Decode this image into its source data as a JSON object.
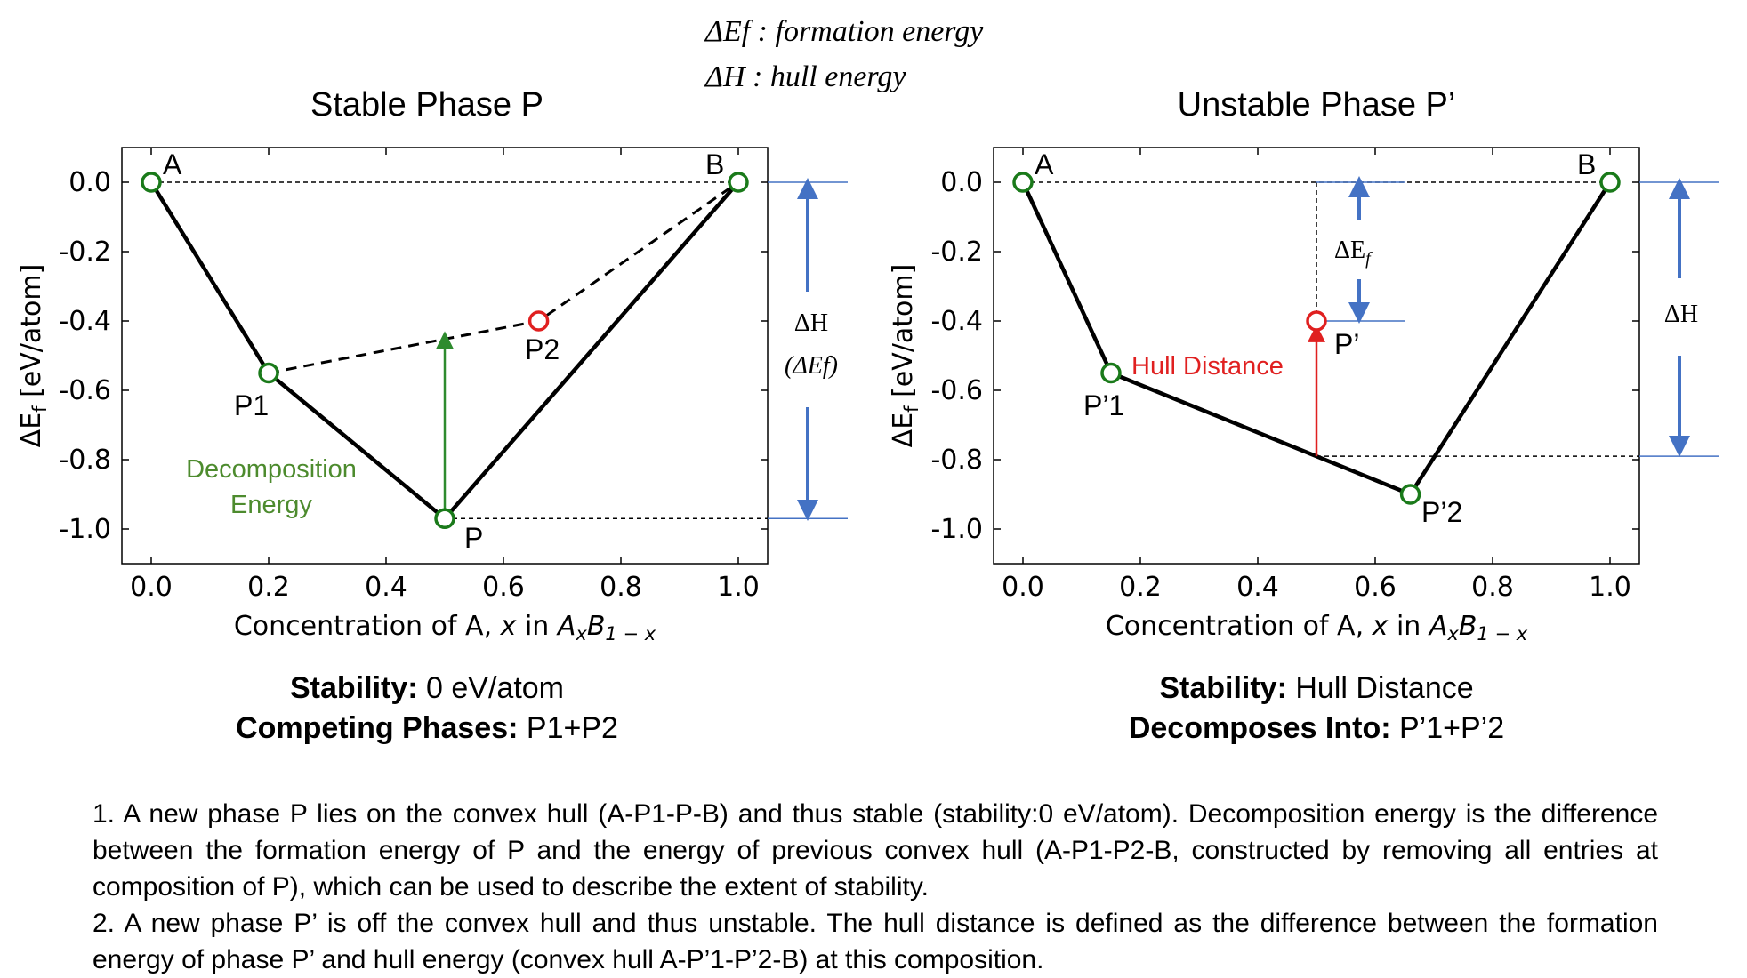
{
  "legend_text": {
    "line1": "ΔEf : formation energy",
    "line2": "ΔH : hull energy"
  },
  "panels": [
    {
      "title": "Stable Phase P",
      "summary_label1": "Stability:",
      "summary_value1": " 0 eV/atom",
      "summary_label2": "Competing Phases:",
      "summary_value2": " P1+P2"
    },
    {
      "title": "Unstable Phase P’",
      "summary_label1": "Stability:",
      "summary_value1": " Hull Distance",
      "summary_label2": "Decomposes Into:",
      "summary_value2": " P’1+P’2"
    }
  ],
  "notes": {
    "n1": "1. A new phase P lies on the convex hull (A-P1-P-B) and thus stable (stability:0 eV/atom). Decomposition energy is the difference between the formation energy of P and the energy of previous convex hull (A-P1-P2-B, constructed by removing all entries at composition of P), which can be used to describe the extent of stability.",
    "n2": "2. A new phase P’ is off the convex hull and thus unstable. The hull distance is defined as the difference between the formation energy of phase P’ and hull energy (convex hull A-P’1-P’2-B) at this composition."
  },
  "chart_data": [
    {
      "type": "line",
      "title": "Stable Phase P",
      "xlabel": "Concentration of A, x in AxB1−x",
      "ylabel": "ΔEf [eV/atom]",
      "xlim": [
        -0.05,
        1.05
      ],
      "ylim": [
        -1.1,
        0.1
      ],
      "xticks": [
        "0.0",
        "0.2",
        "0.4",
        "0.6",
        "0.8",
        "1.0"
      ],
      "yticks": [
        "0.0",
        "-0.2",
        "-0.4",
        "-0.6",
        "-0.8",
        "-1.0"
      ],
      "points": [
        {
          "name": "A",
          "x": 0.0,
          "y": 0.0,
          "color": "#1a7a1a"
        },
        {
          "name": "P1",
          "x": 0.2,
          "y": -0.55,
          "color": "#1a7a1a"
        },
        {
          "name": "P",
          "x": 0.5,
          "y": -0.97,
          "color": "#1a7a1a"
        },
        {
          "name": "P2",
          "x": 0.66,
          "y": -0.4,
          "color": "#e02020"
        },
        {
          "name": "B",
          "x": 1.0,
          "y": 0.0,
          "color": "#1a7a1a"
        }
      ],
      "series": [
        {
          "name": "",
          "style": "solid",
          "x": [
            0.0,
            0.2,
            0.5,
            1.0
          ],
          "y": [
            0.0,
            -0.55,
            -0.97,
            0.0
          ]
        },
        {
          "name": "",
          "style": "dashed",
          "x": [
            0.2,
            0.66,
            1.0
          ],
          "y": [
            -0.55,
            -0.4,
            0.0
          ]
        }
      ],
      "annotations": {
        "arrow_label_line1": "Decomposition",
        "arrow_label_line2": "Energy",
        "arrow_color": "#2e8b2e",
        "arrow_from": [
          0.5,
          -0.97
        ],
        "arrow_to": [
          0.5,
          -0.455
        ],
        "side_label_line1": "ΔH",
        "side_label_line2": "(ΔEf)",
        "side_color": "#4472c4",
        "side_range": [
          0.0,
          -0.97
        ]
      },
      "grid": false
    },
    {
      "type": "line",
      "title": "Unstable Phase P’",
      "xlabel": "Concentration of A, x in AxB1−x",
      "ylabel": "ΔEf [eV/atom]",
      "xlim": [
        -0.05,
        1.05
      ],
      "ylim": [
        -1.1,
        0.1
      ],
      "xticks": [
        "0.0",
        "0.2",
        "0.4",
        "0.6",
        "0.8",
        "1.0"
      ],
      "yticks": [
        "0.0",
        "-0.2",
        "-0.4",
        "-0.6",
        "-0.8",
        "-1.0"
      ],
      "points": [
        {
          "name": "A",
          "x": 0.0,
          "y": 0.0,
          "color": "#1a7a1a"
        },
        {
          "name": "P’1",
          "x": 0.15,
          "y": -0.55,
          "color": "#1a7a1a"
        },
        {
          "name": "P’",
          "x": 0.5,
          "y": -0.4,
          "color": "#e02020"
        },
        {
          "name": "P’2",
          "x": 0.66,
          "y": -0.9,
          "color": "#1a7a1a"
        },
        {
          "name": "B",
          "x": 1.0,
          "y": 0.0,
          "color": "#1a7a1a"
        }
      ],
      "series": [
        {
          "name": "",
          "style": "solid",
          "x": [
            0.0,
            0.15,
            0.66,
            1.0
          ],
          "y": [
            0.0,
            -0.55,
            -0.9,
            0.0
          ]
        }
      ],
      "annotations": {
        "arrow_label": "Hull Distance",
        "arrow_color": "#e02020",
        "arrow_from": [
          0.5,
          -0.79
        ],
        "arrow_to": [
          0.5,
          -0.41
        ],
        "inner_label": "ΔEf",
        "inner_range": [
          0.0,
          -0.4
        ],
        "side_label": "ΔH",
        "side_color": "#4472c4",
        "side_range": [
          0.0,
          -0.79
        ]
      },
      "grid": false
    }
  ]
}
